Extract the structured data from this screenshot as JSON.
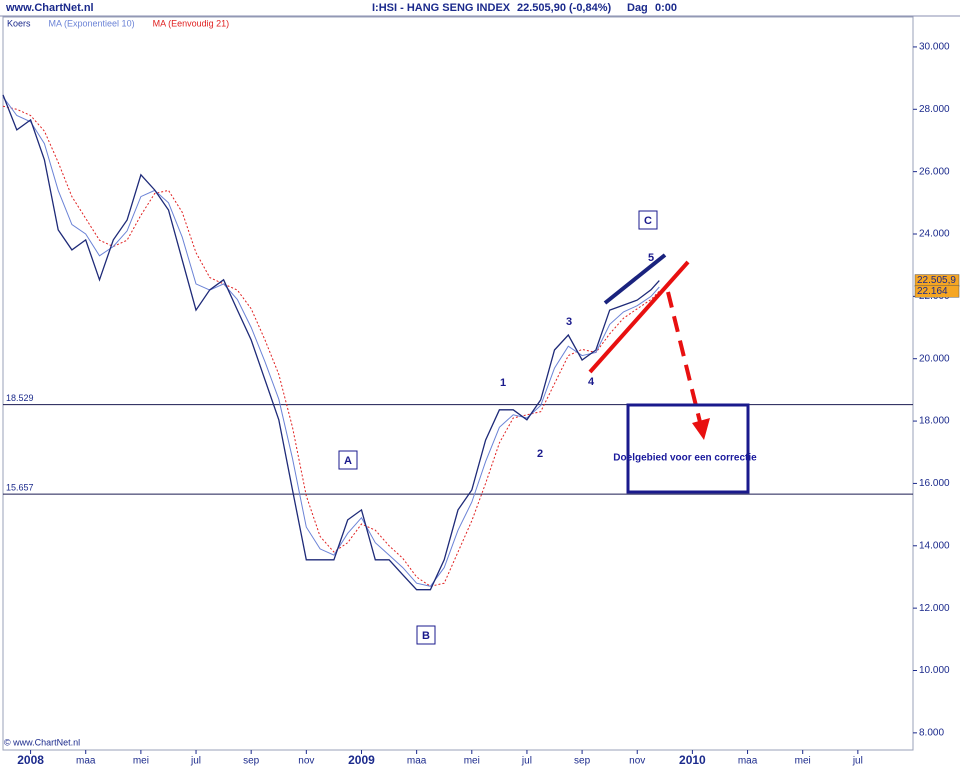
{
  "chart_data": {
    "type": "line",
    "header": {
      "site": "www.ChartNet.nl",
      "title": "I:HSI - HANG SENG INDEX",
      "quote": "22.505,90 (-0,84%)",
      "period": "Dag",
      "time": "0:00"
    },
    "copyright": "© www.ChartNet.nl",
    "x": [
      -1,
      -0.5,
      0,
      0.5,
      1,
      1.5,
      2,
      2.5,
      3,
      3.5,
      4,
      4.5,
      5,
      5.5,
      6,
      6.5,
      7,
      7.5,
      8,
      8.5,
      9,
      9.5,
      10,
      10.5,
      11,
      11.5,
      12,
      12.5,
      13,
      13.5,
      14,
      14.5,
      15,
      15.5,
      16,
      16.5,
      17,
      17.5,
      18,
      18.5,
      19,
      19.5,
      20,
      20.5,
      21,
      21.5,
      22,
      22.5,
      22.8
    ],
    "series": [
      {
        "name": "Koers",
        "color": "#1e2a78",
        "last_label": "22.505,9",
        "values": [
          28460,
          27340,
          27660,
          26380,
          24130,
          23490,
          23810,
          22530,
          23810,
          24450,
          25900,
          25410,
          24770,
          23170,
          21560,
          22210,
          22530,
          21560,
          20600,
          19320,
          18040,
          15790,
          13550,
          13550,
          13550,
          14830,
          15150,
          13550,
          13550,
          13070,
          12590,
          12590,
          13550,
          15150,
          15790,
          17390,
          18360,
          18360,
          18040,
          18680,
          20280,
          20760,
          19960,
          20280,
          21560,
          21720,
          21880,
          22210,
          22505.9
        ]
      },
      {
        "name": "MA (Exponentieel 10)",
        "color": "#6b83d6",
        "values": [
          28400,
          27800,
          27600,
          26900,
          25400,
          24300,
          24000,
          23300,
          23600,
          24100,
          25200,
          25400,
          25000,
          23900,
          22400,
          22200,
          22400,
          21900,
          21000,
          19900,
          18700,
          16800,
          14600,
          13900,
          13700,
          14400,
          14900,
          14100,
          13700,
          13300,
          12800,
          12700,
          13300,
          14500,
          15400,
          16700,
          17800,
          18200,
          18100,
          18500,
          19700,
          20400,
          20100,
          20200,
          21100,
          21500,
          21700,
          22000,
          22300
        ]
      },
      {
        "name": "MA (Eenvoudig 21)",
        "color": "#e02020",
        "dashed": true,
        "last_label": "22.164",
        "values": [
          28100,
          28000,
          27800,
          27300,
          26300,
          25200,
          24500,
          23800,
          23600,
          23800,
          24600,
          25300,
          25400,
          24700,
          23400,
          22600,
          22400,
          22200,
          21600,
          20600,
          19500,
          17800,
          15600,
          14300,
          13800,
          14100,
          14700,
          14500,
          14000,
          13600,
          13000,
          12700,
          12800,
          13800,
          14800,
          16000,
          17300,
          18100,
          18200,
          18300,
          19200,
          20100,
          20300,
          20200,
          20800,
          21300,
          21600,
          21900,
          22164
        ]
      }
    ],
    "xlim": [
      -1,
      32
    ],
    "xticks": [
      {
        "value": 0,
        "label": "2008"
      },
      {
        "value": 2,
        "label": "maa"
      },
      {
        "value": 4,
        "label": "mei"
      },
      {
        "value": 6,
        "label": "jul"
      },
      {
        "value": 8,
        "label": "sep"
      },
      {
        "value": 10,
        "label": "nov"
      },
      {
        "value": 12,
        "label": "2009"
      },
      {
        "value": 14,
        "label": "maa"
      },
      {
        "value": 16,
        "label": "mei"
      },
      {
        "value": 18,
        "label": "jul"
      },
      {
        "value": 20,
        "label": "sep"
      },
      {
        "value": 22,
        "label": "nov"
      },
      {
        "value": 24,
        "label": "2010"
      },
      {
        "value": 26,
        "label": "maa"
      },
      {
        "value": 28,
        "label": "mei"
      },
      {
        "value": 30,
        "label": "jul"
      }
    ],
    "ylim": [
      7450,
      30960
    ],
    "yticks": [
      {
        "value": 8000,
        "label": "8.000"
      },
      {
        "value": 10000,
        "label": "10.000"
      },
      {
        "value": 12000,
        "label": "12.000"
      },
      {
        "value": 14000,
        "label": "14.000"
      },
      {
        "value": 16000,
        "label": "16.000"
      },
      {
        "value": 18000,
        "label": "18.000"
      },
      {
        "value": 20000,
        "label": "20.000"
      },
      {
        "value": 22000,
        "label": "22.000"
      },
      {
        "value": 24000,
        "label": "24.000"
      },
      {
        "value": 26000,
        "label": "26.000"
      },
      {
        "value": 28000,
        "label": "28.000"
      },
      {
        "value": 30000,
        "label": "30.000"
      }
    ],
    "levels": [
      {
        "value": 18529,
        "label": "18.529"
      },
      {
        "value": 15657,
        "label": "15.657"
      }
    ],
    "waves": [
      "A",
      "B",
      "C",
      "1",
      "2",
      "3",
      "4",
      "5"
    ],
    "target": "Doelgebied voor een correctie"
  }
}
